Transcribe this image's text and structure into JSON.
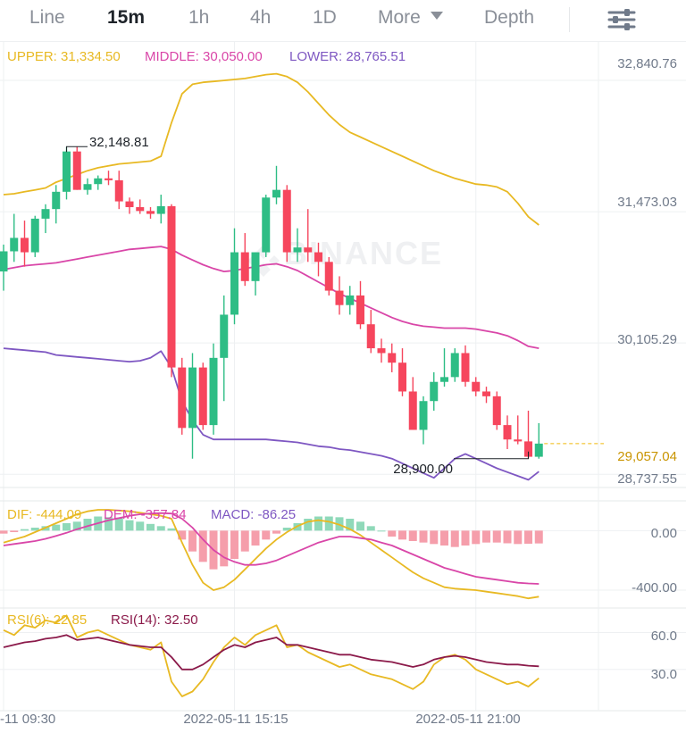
{
  "tabs": [
    {
      "label": "Line",
      "active": false
    },
    {
      "label": "15m",
      "active": true
    },
    {
      "label": "1h",
      "active": false
    },
    {
      "label": "4h",
      "active": false
    },
    {
      "label": "1D",
      "active": false
    },
    {
      "label": "More",
      "active": false,
      "icon": "caret-down-icon"
    },
    {
      "label": "Depth",
      "active": false
    }
  ],
  "settings_icon": "sliders-icon",
  "watermark": "BINANCE",
  "colors": {
    "up": "#2ebd85",
    "down": "#f6465d",
    "upper": "#e8b923",
    "middle": "#d946a8",
    "lower": "#7e57c2",
    "macd_up": "#8fd9b9",
    "macd_down": "#f59eab",
    "dif": "#e8b923",
    "dem": "#d946a8",
    "rsi6": "#e8b923",
    "rsi14": "#8b1a4a",
    "grid": "#eef0f2",
    "axis_text": "#707a8a"
  },
  "chart_data": [
    {
      "type": "candlestick",
      "legend": [
        {
          "label": "UPPER: 31,334.50",
          "color": "#e8b923"
        },
        {
          "label": "MIDDLE: 30,050.00",
          "color": "#d946a8"
        },
        {
          "label": "LOWER: 28,765.51",
          "color": "#7e57c2"
        }
      ],
      "y_ticks": [
        "32,840.76",
        "31,473.03",
        "30,105.29",
        "28,737.55"
      ],
      "y_tick_values": [
        32840.76,
        31473.03,
        30105.29,
        28737.55
      ],
      "ylim": [
        28600,
        33250
      ],
      "last_price": "29,057.04",
      "last_price_value": 29057.04,
      "high_label": "32,148.81",
      "low_label": "28,900.00",
      "candles": [
        [
          30850,
          31130,
          30650,
          31060
        ],
        [
          31060,
          31450,
          30950,
          31200
        ],
        [
          31200,
          31380,
          30900,
          31050
        ],
        [
          31050,
          31430,
          31000,
          31400
        ],
        [
          31400,
          31550,
          31250,
          31500
        ],
        [
          31500,
          31750,
          31350,
          31680
        ],
        [
          31680,
          32150,
          31600,
          32100
        ],
        [
          32100,
          32150,
          31700,
          31700
        ],
        [
          31700,
          31820,
          31650,
          31760
        ],
        [
          31760,
          31850,
          31700,
          31820
        ],
        [
          31820,
          31900,
          31750,
          31800
        ],
        [
          31800,
          31900,
          31500,
          31580
        ],
        [
          31580,
          31620,
          31450,
          31520
        ],
        [
          31520,
          31600,
          31450,
          31480
        ],
        [
          31480,
          31520,
          31400,
          31450
        ],
        [
          31450,
          31650,
          31350,
          31530
        ],
        [
          31530,
          31550,
          29750,
          29850
        ],
        [
          29850,
          29950,
          29150,
          29220
        ],
        [
          29220,
          30000,
          28900,
          29850
        ],
        [
          29850,
          29900,
          29200,
          29250
        ],
        [
          29250,
          30100,
          29150,
          29950
        ],
        [
          29950,
          30600,
          29500,
          30400
        ],
        [
          30400,
          31300,
          30300,
          31050
        ],
        [
          31050,
          31250,
          30700,
          30750
        ],
        [
          30750,
          31050,
          30600,
          31050
        ],
        [
          31050,
          31650,
          31000,
          31620
        ],
        [
          31620,
          31950,
          31550,
          31700
        ],
        [
          31700,
          31750,
          30950,
          31050
        ],
        [
          31050,
          31300,
          30950,
          31100
        ],
        [
          31100,
          31500,
          30950,
          31050
        ],
        [
          31050,
          31150,
          30800,
          30950
        ],
        [
          30950,
          31000,
          30600,
          30650
        ],
        [
          30650,
          30800,
          30400,
          30500
        ],
        [
          30500,
          30700,
          30400,
          30600
        ],
        [
          30600,
          30750,
          30250,
          30300
        ],
        [
          30300,
          30450,
          30000,
          30050
        ],
        [
          30050,
          30150,
          29900,
          30000
        ],
        [
          30000,
          30100,
          29800,
          29900
        ],
        [
          29900,
          30050,
          29550,
          29600
        ],
        [
          29600,
          29750,
          29200,
          29200
        ],
        [
          29200,
          29550,
          29050,
          29500
        ],
        [
          29500,
          29800,
          29400,
          29700
        ],
        [
          29700,
          30050,
          29650,
          29750
        ],
        [
          29750,
          30050,
          29700,
          30000
        ],
        [
          30000,
          30080,
          29650,
          29700
        ],
        [
          29700,
          29750,
          29550,
          29600
        ],
        [
          29600,
          29650,
          29480,
          29550
        ],
        [
          29550,
          29600,
          29200,
          29250
        ],
        [
          29250,
          29350,
          29000,
          29100
        ],
        [
          29100,
          29350,
          29050,
          29080
        ],
        [
          29080,
          29400,
          28900,
          28920
        ],
        [
          28920,
          29270,
          28900,
          29057
        ]
      ],
      "upper_band": [
        31650,
        31660,
        31680,
        31700,
        31720,
        31780,
        31820,
        31860,
        31900,
        31930,
        31950,
        31970,
        31980,
        31990,
        32000,
        32050,
        32400,
        32700,
        32800,
        32820,
        32830,
        32840,
        32850,
        32860,
        32880,
        32900,
        32910,
        32880,
        32820,
        32720,
        32600,
        32480,
        32380,
        32300,
        32250,
        32200,
        32150,
        32100,
        32050,
        32000,
        31950,
        31900,
        31860,
        31820,
        31790,
        31760,
        31750,
        31730,
        31680,
        31560,
        31420,
        31334.5
      ],
      "middle_band": [
        30870,
        30890,
        30910,
        30920,
        30930,
        30940,
        30960,
        30980,
        31000,
        31020,
        31040,
        31060,
        31080,
        31090,
        31100,
        31110,
        31080,
        31020,
        30970,
        30920,
        30880,
        30850,
        30860,
        30880,
        30900,
        30920,
        30930,
        30900,
        30860,
        30800,
        30740,
        30680,
        30620,
        30570,
        30520,
        30470,
        30420,
        30370,
        30330,
        30300,
        30280,
        30270,
        30260,
        30260,
        30260,
        30250,
        30230,
        30210,
        30180,
        30130,
        30070,
        30050
      ],
      "lower_band": [
        30050,
        30040,
        30030,
        30020,
        30010,
        29980,
        29970,
        29960,
        29950,
        29940,
        29930,
        29920,
        29910,
        29920,
        29950,
        30020,
        29850,
        29500,
        29300,
        29150,
        29100,
        29100,
        29100,
        29100,
        29100,
        29100,
        29090,
        29080,
        29070,
        29050,
        29030,
        29020,
        29000,
        28990,
        28970,
        28950,
        28930,
        28900,
        28850,
        28800,
        28750,
        28700,
        28800,
        28900,
        28950,
        28900,
        28850,
        28800,
        28760,
        28720,
        28680,
        28765.51
      ]
    },
    {
      "type": "bar+line",
      "legend": [
        {
          "label": "DIF: -444.09",
          "color": "#e8b923"
        },
        {
          "label": "DEM: -357.84",
          "color": "#d946a8"
        },
        {
          "label": "MACD: -86.25",
          "color": "#7e57c2"
        }
      ],
      "y_ticks": [
        "0.00",
        "-400.00"
      ],
      "y_tick_values": [
        0,
        -400
      ],
      "ylim": [
        -520,
        200
      ],
      "histogram": [
        -20,
        -10,
        10,
        20,
        30,
        40,
        50,
        60,
        80,
        95,
        90,
        85,
        70,
        60,
        45,
        30,
        15,
        -60,
        -140,
        -210,
        -260,
        -240,
        -190,
        -140,
        -100,
        -60,
        -20,
        20,
        50,
        80,
        95,
        95,
        90,
        80,
        60,
        30,
        0,
        -40,
        -60,
        -70,
        -80,
        -90,
        -100,
        -110,
        -100,
        -90,
        -80,
        -80,
        -85,
        -90,
        -88,
        -86
      ],
      "dif": [
        -80,
        -60,
        -40,
        -10,
        20,
        50,
        80,
        110,
        130,
        140,
        140,
        135,
        130,
        120,
        110,
        100,
        80,
        -80,
        -230,
        -350,
        -400,
        -380,
        -330,
        -260,
        -190,
        -120,
        -60,
        -10,
        30,
        60,
        70,
        60,
        40,
        10,
        -30,
        -80,
        -130,
        -180,
        -230,
        -280,
        -320,
        -350,
        -380,
        -390,
        -395,
        -400,
        -410,
        -420,
        -430,
        -440,
        -455,
        -444
      ],
      "dem": [
        -100,
        -90,
        -80,
        -70,
        -55,
        -35,
        -15,
        10,
        30,
        50,
        70,
        85,
        100,
        110,
        115,
        118,
        115,
        80,
        20,
        -60,
        -130,
        -180,
        -210,
        -230,
        -230,
        -220,
        -200,
        -170,
        -140,
        -110,
        -80,
        -60,
        -40,
        -40,
        -50,
        -60,
        -80,
        -100,
        -130,
        -160,
        -190,
        -220,
        -250,
        -270,
        -290,
        -310,
        -320,
        -330,
        -340,
        -350,
        -355,
        -357.84
      ]
    },
    {
      "type": "line",
      "legend": [
        {
          "label": "RSI(6): 22.85",
          "color": "#e8b923"
        },
        {
          "label": "RSI(14): 32.50",
          "color": "#8b1a4a"
        }
      ],
      "y_ticks": [
        "60.0",
        "30.0"
      ],
      "y_tick_values": [
        60,
        30
      ],
      "ylim": [
        0,
        80
      ],
      "rsi6": [
        62,
        58,
        66,
        64,
        70,
        68,
        74,
        56,
        60,
        62,
        58,
        54,
        50,
        48,
        46,
        52,
        20,
        8,
        12,
        22,
        36,
        48,
        56,
        50,
        58,
        62,
        66,
        48,
        50,
        44,
        40,
        36,
        32,
        34,
        30,
        26,
        24,
        22,
        18,
        14,
        20,
        34,
        40,
        42,
        38,
        30,
        26,
        22,
        18,
        20,
        16,
        22.85
      ],
      "rsi14": [
        48,
        50,
        52,
        53,
        55,
        56,
        58,
        54,
        55,
        56,
        54,
        52,
        50,
        49,
        48,
        48,
        40,
        30,
        30,
        34,
        40,
        46,
        50,
        48,
        52,
        54,
        56,
        50,
        50,
        48,
        46,
        44,
        42,
        42,
        40,
        38,
        37,
        36,
        34,
        32,
        34,
        38,
        40,
        41,
        40,
        38,
        36,
        35,
        34,
        34,
        33,
        32.5
      ]
    }
  ],
  "x_ticks": [
    "-11 09:30",
    "2022-05-11 15:15",
    "2022-05-11 21:00"
  ],
  "x_tick_candles": [
    0,
    22,
    45
  ]
}
